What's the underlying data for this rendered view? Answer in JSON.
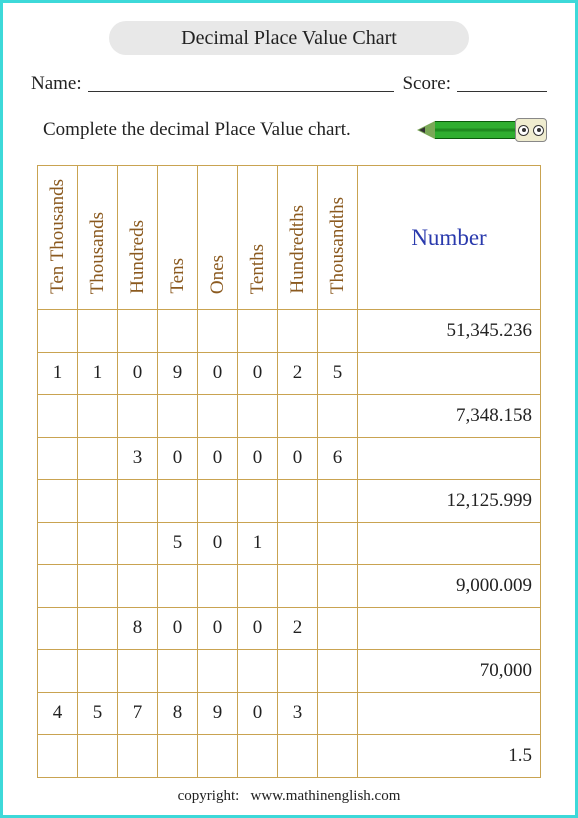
{
  "title": "Decimal Place Value Chart",
  "name_label": "Name:",
  "score_label": "Score:",
  "instruction": "Complete the decimal Place Value chart.",
  "table": {
    "place_headers": [
      "Ten Thousands",
      "Thousands",
      "Hundreds",
      "Tens",
      "Ones",
      "Tenths",
      "Hundredths",
      "Thousandths"
    ],
    "number_header": "Number",
    "header_color": "#8b5a1f",
    "number_header_color": "#2a3aad",
    "border_color": "#c9a351",
    "rows": [
      {
        "pv": [
          "",
          "",
          "",
          "",
          "",
          "",
          "",
          ""
        ],
        "number": "51,345.236"
      },
      {
        "pv": [
          "1",
          "1",
          "0",
          "9",
          "0",
          "0",
          "2",
          "5"
        ],
        "number": ""
      },
      {
        "pv": [
          "",
          "",
          "",
          "",
          "",
          "",
          "",
          ""
        ],
        "number": "7,348.158"
      },
      {
        "pv": [
          "",
          "",
          "3",
          "0",
          "0",
          "0",
          "0",
          "6"
        ],
        "number": ""
      },
      {
        "pv": [
          "",
          "",
          "",
          "",
          "",
          "",
          "",
          ""
        ],
        "number": "12,125.999"
      },
      {
        "pv": [
          "",
          "",
          "",
          "5",
          "0",
          "1",
          "",
          ""
        ],
        "number": ""
      },
      {
        "pv": [
          "",
          "",
          "",
          "",
          "",
          "",
          "",
          ""
        ],
        "number": "9,000.009"
      },
      {
        "pv": [
          "",
          "",
          "8",
          "0",
          "0",
          "0",
          "2",
          ""
        ],
        "number": ""
      },
      {
        "pv": [
          "",
          "",
          "",
          "",
          "",
          "",
          "",
          ""
        ],
        "number": "70,000"
      },
      {
        "pv": [
          "4",
          "5",
          "7",
          "8",
          "9",
          "0",
          "3",
          ""
        ],
        "number": ""
      },
      {
        "pv": [
          "",
          "",
          "",
          "",
          "",
          "",
          "",
          ""
        ],
        "number": "1.5"
      }
    ]
  },
  "footer": {
    "label": "copyright:",
    "site": "www.mathinenglish.com"
  },
  "colors": {
    "page_border": "#3dd9d9",
    "pill_bg": "#e8e8e8"
  }
}
